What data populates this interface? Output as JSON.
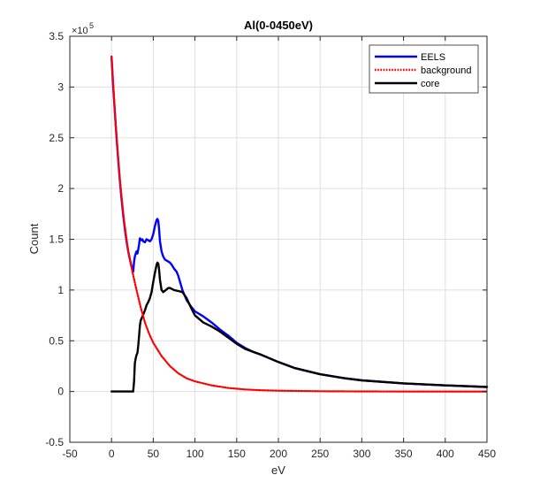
{
  "chart_data": {
    "type": "line",
    "title": "Al(0-0450eV)",
    "xlabel": "eV",
    "ylabel": "Count",
    "xlim": [
      -50,
      450
    ],
    "ylim": [
      -0.5,
      3.5
    ],
    "y_multiplier_label": "×10",
    "y_multiplier_exponent": "5",
    "xticks": [
      -50,
      0,
      50,
      100,
      150,
      200,
      250,
      300,
      350,
      400,
      450
    ],
    "yticks": [
      -0.5,
      0,
      0.5,
      1,
      1.5,
      2,
      2.5,
      3,
      3.5
    ],
    "ytick_labels": [
      "-0.5",
      "0",
      "0.5",
      "1",
      "1.5",
      "2",
      "2.5",
      "3",
      "3.5"
    ],
    "grid": true,
    "legend_position": "top-right",
    "series": [
      {
        "name": "EELS",
        "color": "#0000ff",
        "style": "solid",
        "x": [
          0,
          2,
          4,
          6,
          8,
          10,
          12,
          14,
          16,
          18,
          20,
          22,
          24,
          26,
          27,
          28,
          29,
          30,
          31,
          32,
          33,
          34,
          35,
          36,
          37,
          38,
          40,
          42,
          44,
          46,
          48,
          50,
          52,
          54,
          55,
          56,
          57,
          58,
          60,
          62,
          64,
          66,
          68,
          70,
          72,
          75,
          78,
          80,
          85,
          90,
          95,
          100,
          110,
          120,
          130,
          140,
          150,
          160,
          170,
          180,
          200,
          220,
          250,
          280,
          300,
          350,
          400,
          450
        ],
        "y": [
          3.3,
          3.0,
          2.75,
          2.5,
          2.28,
          2.08,
          1.9,
          1.74,
          1.6,
          1.48,
          1.38,
          1.3,
          1.23,
          1.18,
          1.28,
          1.33,
          1.36,
          1.38,
          1.36,
          1.4,
          1.45,
          1.51,
          1.5,
          1.49,
          1.5,
          1.48,
          1.47,
          1.5,
          1.49,
          1.48,
          1.5,
          1.55,
          1.63,
          1.69,
          1.7,
          1.68,
          1.6,
          1.48,
          1.38,
          1.33,
          1.3,
          1.29,
          1.28,
          1.27,
          1.25,
          1.21,
          1.18,
          1.14,
          1.0,
          0.9,
          0.84,
          0.79,
          0.74,
          0.68,
          0.61,
          0.55,
          0.48,
          0.43,
          0.39,
          0.36,
          0.29,
          0.23,
          0.17,
          0.13,
          0.11,
          0.08,
          0.06,
          0.045
        ]
      },
      {
        "name": "background",
        "color": "#ff0000",
        "style": "dotted",
        "x": [
          0,
          5,
          10,
          15,
          20,
          25,
          30,
          35,
          40,
          45,
          50,
          60,
          70,
          80,
          90,
          100,
          120,
          140,
          160,
          180,
          200,
          250,
          300,
          350,
          400,
          450
        ],
        "y": [
          3.3,
          2.62,
          2.08,
          1.68,
          1.38,
          1.18,
          1.0,
          0.83,
          0.68,
          0.57,
          0.48,
          0.35,
          0.25,
          0.18,
          0.13,
          0.1,
          0.06,
          0.035,
          0.02,
          0.012,
          0.008,
          0.003,
          0.001,
          0.0005,
          0.0002,
          0.0001
        ]
      },
      {
        "name": "core",
        "color": "#000000",
        "style": "solid",
        "x": [
          0,
          10,
          20,
          26,
          27,
          28,
          29,
          30,
          31,
          32,
          33,
          34,
          35,
          36,
          38,
          40,
          42,
          44,
          46,
          48,
          50,
          52,
          54,
          55,
          56,
          57,
          58,
          60,
          62,
          65,
          68,
          70,
          75,
          80,
          85,
          90,
          95,
          100,
          110,
          120,
          130,
          140,
          150,
          160,
          170,
          180,
          200,
          220,
          250,
          280,
          300,
          350,
          400,
          450
        ],
        "y": [
          0,
          0,
          0,
          0,
          0.1,
          0.28,
          0.33,
          0.36,
          0.38,
          0.45,
          0.55,
          0.65,
          0.7,
          0.72,
          0.76,
          0.8,
          0.85,
          0.88,
          0.92,
          0.98,
          1.08,
          1.17,
          1.25,
          1.27,
          1.26,
          1.2,
          1.1,
          1.0,
          0.98,
          1.0,
          1.02,
          1.02,
          1.0,
          0.99,
          0.98,
          0.92,
          0.83,
          0.75,
          0.68,
          0.64,
          0.59,
          0.53,
          0.47,
          0.42,
          0.39,
          0.36,
          0.29,
          0.23,
          0.17,
          0.13,
          0.11,
          0.08,
          0.06,
          0.045
        ]
      }
    ]
  }
}
